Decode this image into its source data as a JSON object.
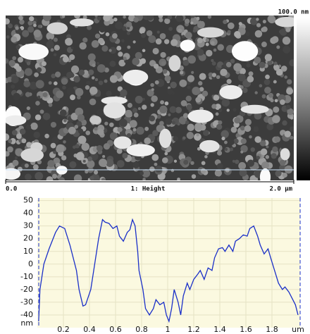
{
  "image": {
    "scale_max": "100.0 nm",
    "x_start": "0.0",
    "channel": "1: Height",
    "x_end": "2.0 µm"
  },
  "chart_data": {
    "type": "line",
    "x": [
      0.01,
      0.02,
      0.05,
      0.09,
      0.14,
      0.17,
      0.21,
      0.25,
      0.3,
      0.32,
      0.35,
      0.37,
      0.41,
      0.44,
      0.47,
      0.5,
      0.52,
      0.55,
      0.58,
      0.61,
      0.63,
      0.66,
      0.69,
      0.71,
      0.73,
      0.75,
      0.77,
      0.78,
      0.81,
      0.83,
      0.86,
      0.89,
      0.91,
      0.94,
      0.97,
      0.99,
      1.01,
      1.03,
      1.05,
      1.08,
      1.1,
      1.12,
      1.15,
      1.17,
      1.2,
      1.23,
      1.25,
      1.28,
      1.31,
      1.34,
      1.36,
      1.39,
      1.42,
      1.44,
      1.47,
      1.5,
      1.52,
      1.55,
      1.58,
      1.61,
      1.63,
      1.66,
      1.69,
      1.71,
      1.74,
      1.77,
      1.79,
      1.82,
      1.85,
      1.88,
      1.9,
      1.93,
      1.96,
      1.98,
      2.0
    ],
    "series": [
      {
        "color": "#1a2fc8",
        "values": [
          -45,
          -20,
          0,
          12,
          25,
          30,
          28,
          15,
          -5,
          -20,
          -33,
          -32,
          -20,
          0,
          20,
          35,
          33,
          32,
          28,
          30,
          22,
          18,
          25,
          27,
          35,
          30,
          10,
          -5,
          -20,
          -35,
          -40,
          -35,
          -28,
          -32,
          -30,
          -40,
          -45,
          -35,
          -20,
          -30,
          -40,
          -25,
          -15,
          -20,
          -12,
          -8,
          -5,
          -12,
          -3,
          -5,
          5,
          12,
          13,
          10,
          15,
          10,
          18,
          20,
          23,
          22,
          28,
          30,
          22,
          15,
          8,
          12,
          5,
          -5,
          -15,
          -20,
          -18,
          -22,
          -28,
          -32,
          -40
        ]
      }
    ],
    "xlim": [
      0,
      2.0
    ],
    "xticks": [
      0.2,
      0.4,
      0.6,
      0.8,
      1,
      1.2,
      1.4,
      1.6,
      1.8
    ],
    "x_label": "um",
    "ylim": [
      -50,
      52
    ],
    "yticks": [
      50,
      40,
      30,
      20,
      10,
      0,
      -10,
      -20,
      -30,
      -40
    ],
    "y_label": "nm",
    "grid": true
  }
}
